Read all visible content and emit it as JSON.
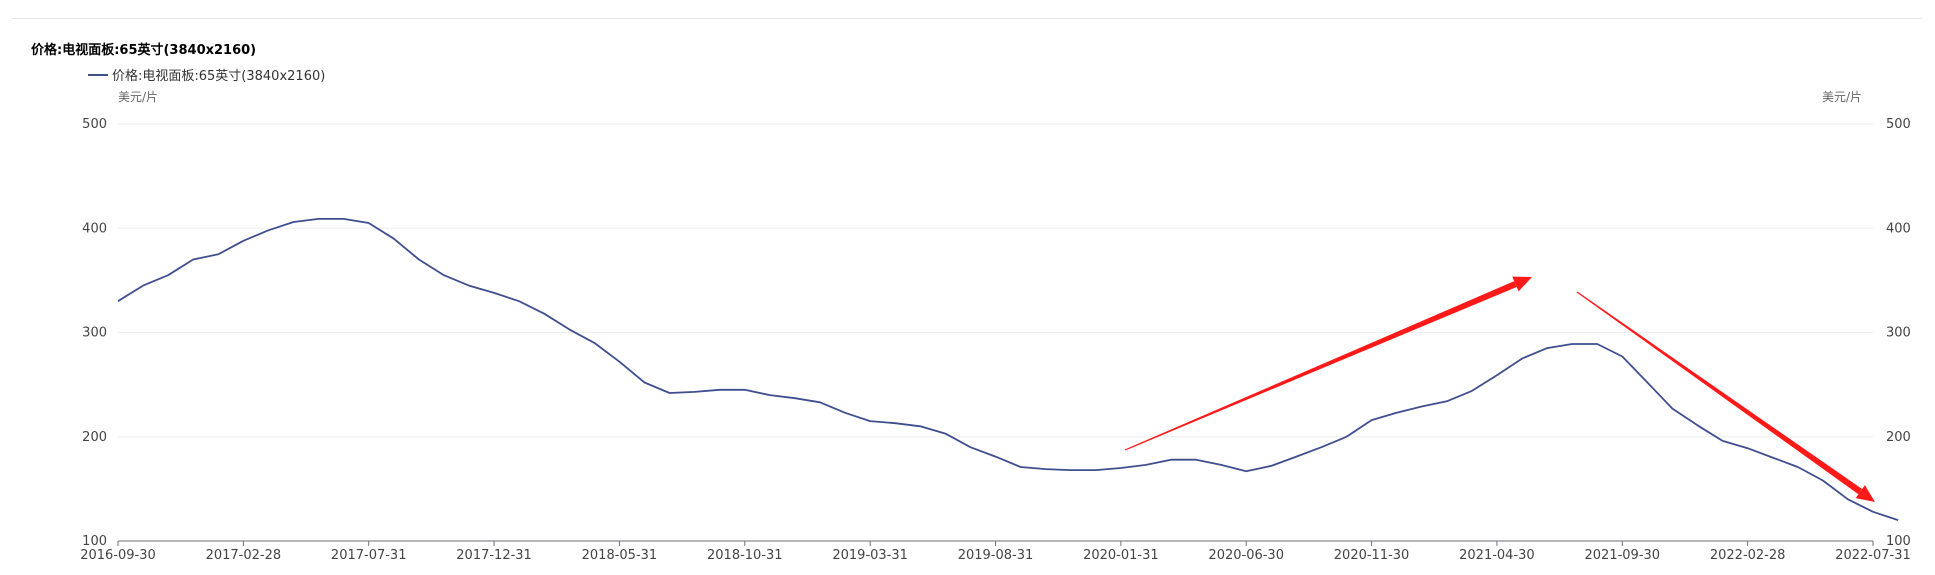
{
  "colors": {
    "series": "#3f4e8f",
    "grid": "#eeeeee",
    "axis_text": "#444444",
    "annotation_arrow": "#ff1a1a"
  },
  "chart_data": {
    "type": "line",
    "title": "价格:电视面板:65英寸(3840x2160)",
    "legend_position": "top-left",
    "grid": true,
    "y_unit_left": "美元/片",
    "y_unit_right": "美元/片",
    "ylim": [
      100,
      500
    ],
    "yticks": [
      "100",
      "200",
      "300",
      "400",
      "500"
    ],
    "x_tick_labels": [
      "2016-09-30",
      "2017-02-28",
      "2017-07-31",
      "2017-12-31",
      "2018-05-31",
      "2018-10-31",
      "2019-03-31",
      "2019-08-31",
      "2020-01-31",
      "2020-06-30",
      "2020-11-30",
      "2021-04-30",
      "2021-09-30",
      "2022-02-28",
      "2022-07-31"
    ],
    "x_start": "2016-09",
    "x_end": "2022-07",
    "series": [
      {
        "name": "价格:电视面板:65英寸(3840x2160)",
        "values": [
          330,
          345,
          355,
          370,
          375,
          388,
          398,
          406,
          409,
          409,
          405,
          390,
          370,
          355,
          345,
          338,
          330,
          318,
          303,
          290,
          272,
          252,
          242,
          243,
          245,
          245,
          240,
          237,
          233,
          223,
          215,
          213,
          210,
          203,
          190,
          181,
          171,
          169,
          168,
          168,
          170,
          173,
          178,
          178,
          173,
          167,
          172,
          181,
          190,
          200,
          216,
          223,
          229,
          234,
          244,
          259,
          275,
          285,
          289,
          289,
          277,
          252,
          227,
          211,
          196,
          189,
          180,
          171,
          158,
          140,
          128,
          120
        ]
      }
    ],
    "annotations": [
      {
        "type": "arrow",
        "direction": "up"
      },
      {
        "type": "arrow",
        "direction": "down"
      }
    ]
  }
}
